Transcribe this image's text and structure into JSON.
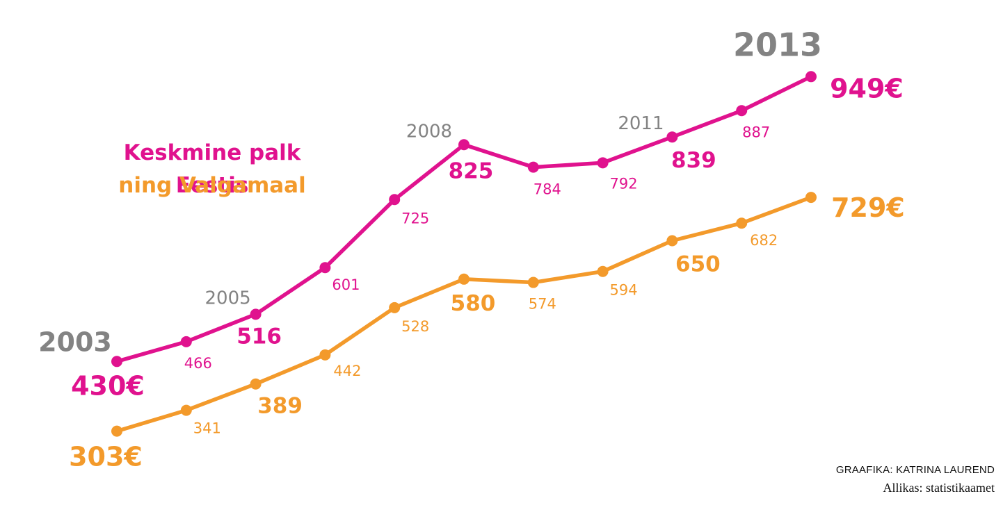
{
  "colors": {
    "pink": "#e0128e",
    "orange": "#f39a2b",
    "gray": "#838383"
  },
  "legend": {
    "line1": "Keskmine palk Eestis",
    "line2": "ning Valgamaal"
  },
  "credits": {
    "graphics": "GRAAFIKA: KATRINA LAUREND",
    "source": "Allikas: statistikaamet"
  },
  "chart_data": {
    "type": "line",
    "x": [
      2003,
      2004,
      2005,
      2006,
      2007,
      2008,
      2009,
      2010,
      2011,
      2012,
      2013
    ],
    "year_labels": [
      {
        "year": 2003,
        "label": "2003"
      },
      {
        "year": 2005,
        "label": "2005"
      },
      {
        "year": 2008,
        "label": "2008"
      },
      {
        "year": 2011,
        "label": "2011"
      },
      {
        "year": 2013,
        "label": "2013"
      }
    ],
    "series": [
      {
        "name": "Keskmine palk Eestis",
        "color": "#e0128e",
        "values": [
          430,
          466,
          516,
          601,
          725,
          825,
          784,
          792,
          839,
          887,
          949
        ],
        "labels": [
          "430€",
          "466",
          "516",
          "601",
          "725",
          "825",
          "784",
          "792",
          "839",
          "887",
          "949€"
        ]
      },
      {
        "name": "ning Valgamaal",
        "color": "#f39a2b",
        "values": [
          303,
          341,
          389,
          442,
          528,
          580,
          574,
          594,
          650,
          682,
          729
        ],
        "labels": [
          "303€",
          "341",
          "389",
          "442",
          "528",
          "580",
          "574",
          "594",
          "650",
          "682",
          "729€"
        ]
      }
    ],
    "legend_position": "left",
    "grid": false
  }
}
